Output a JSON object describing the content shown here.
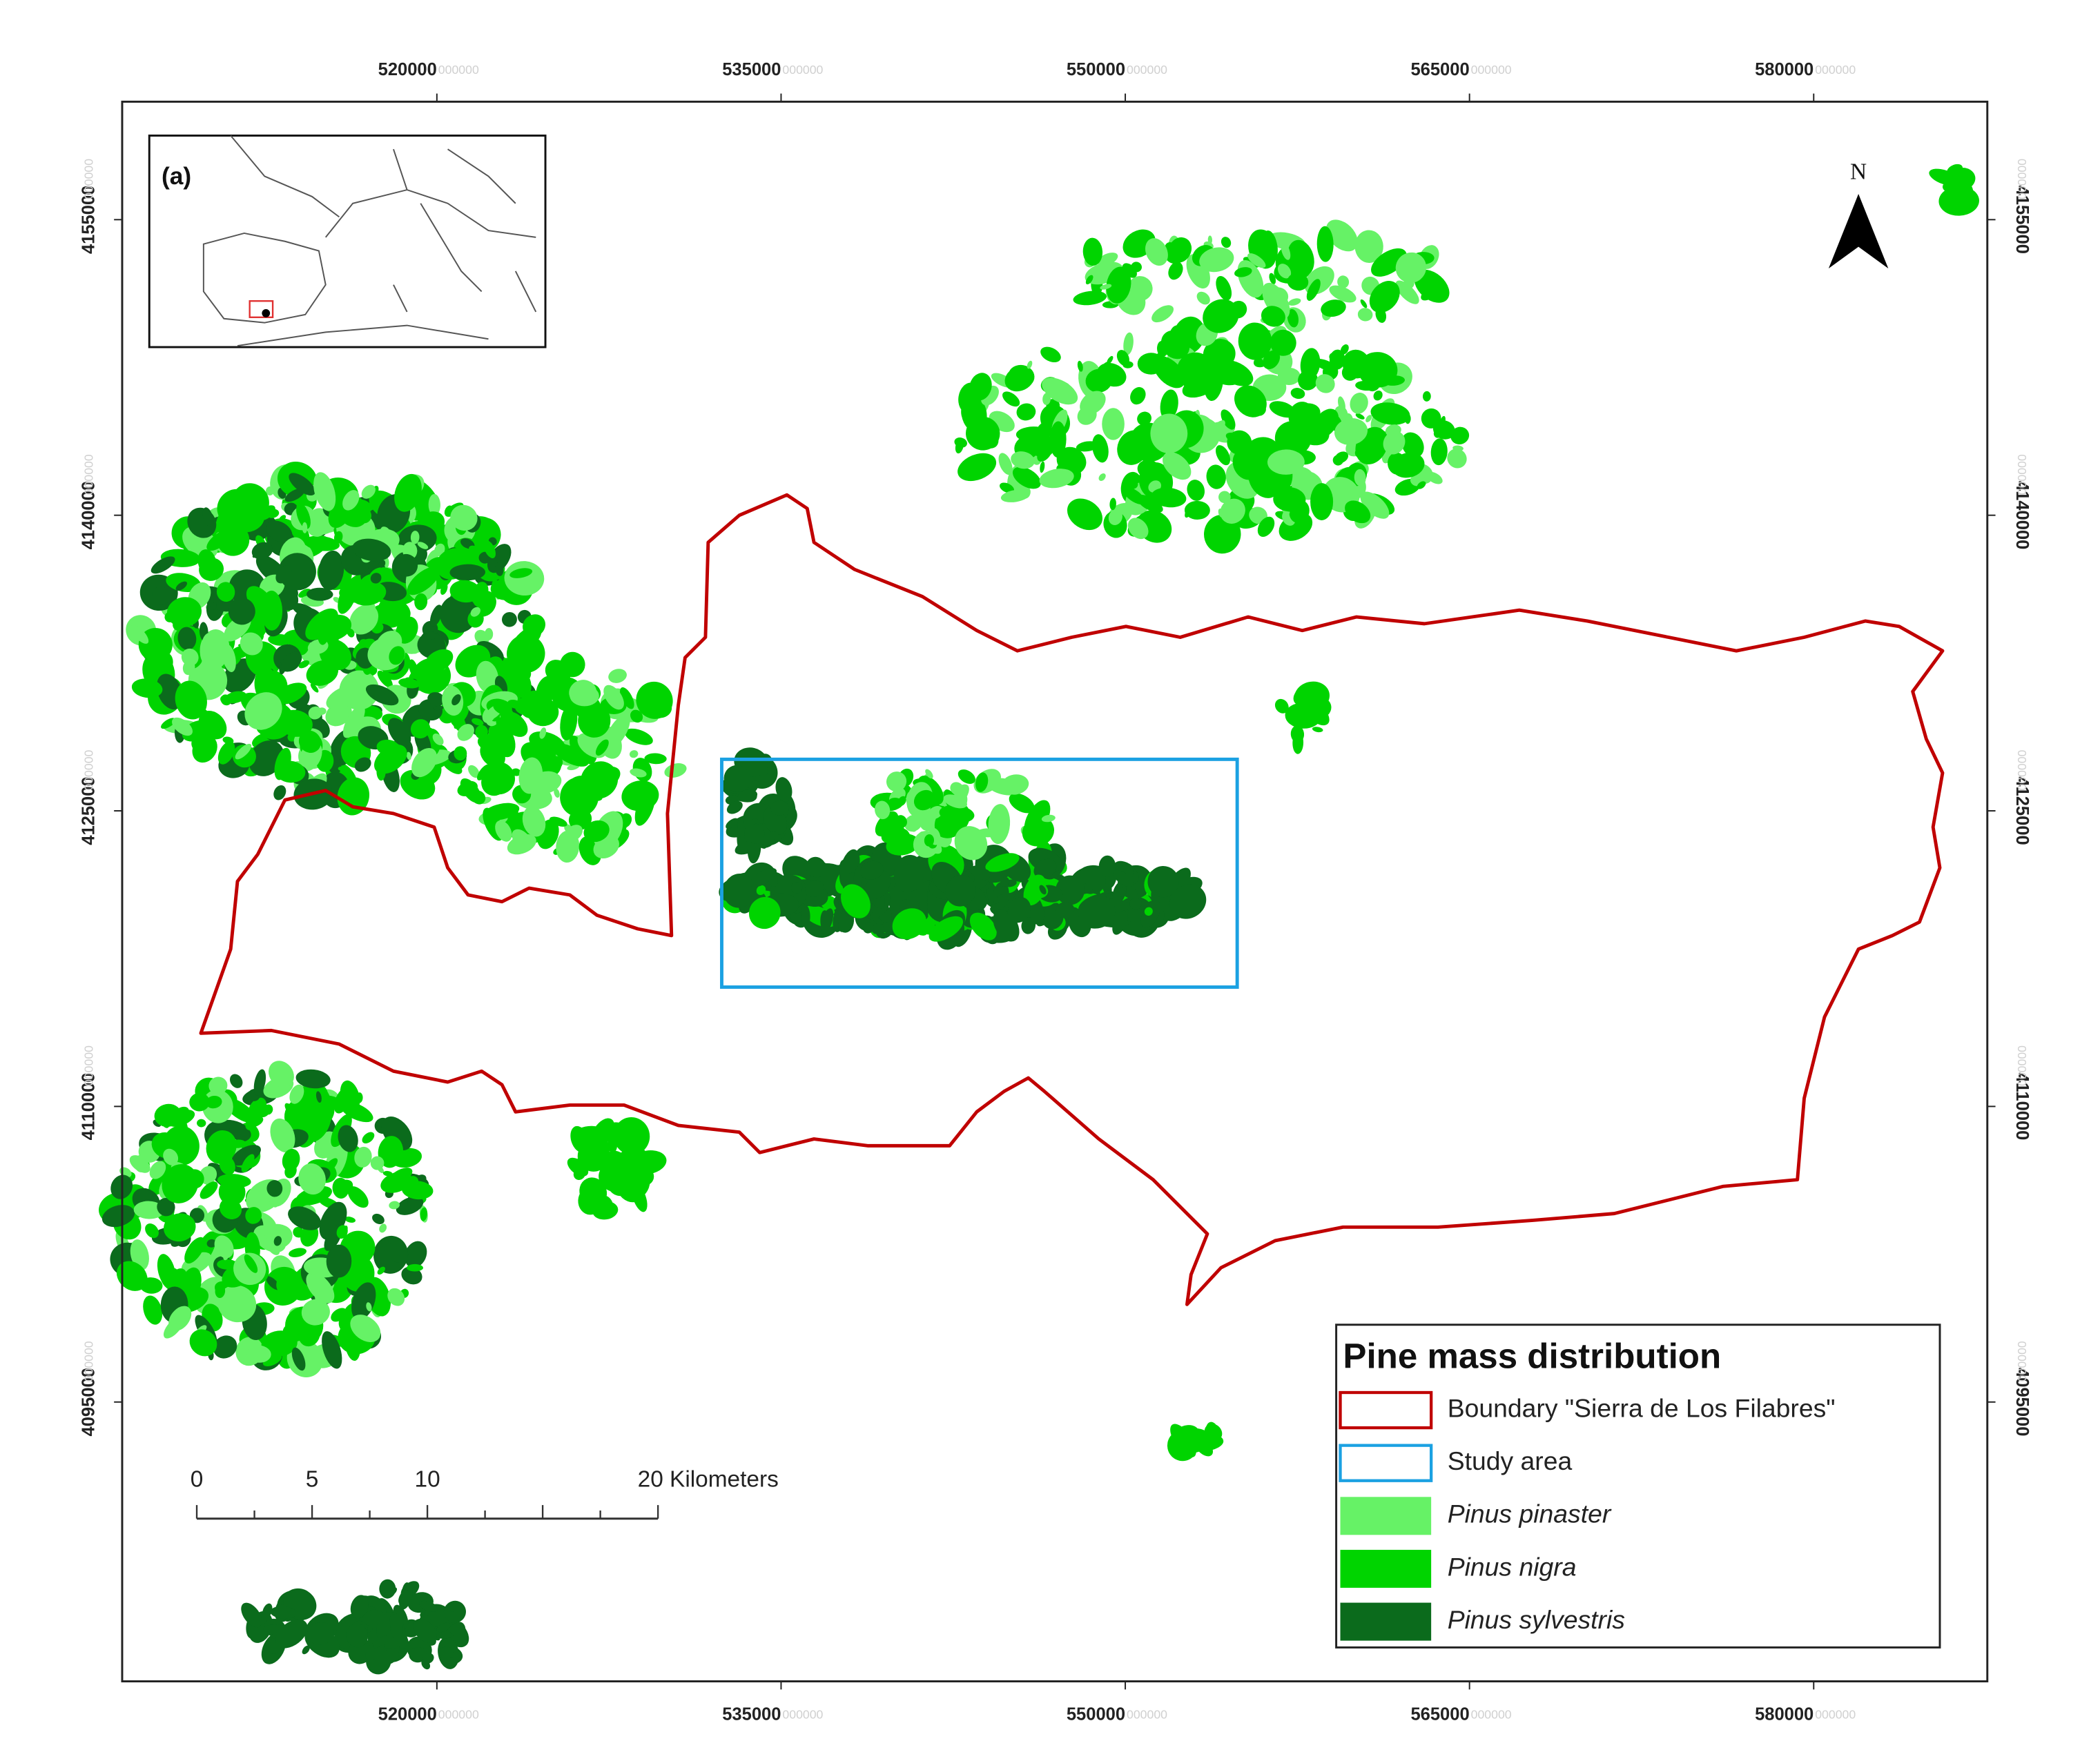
{
  "map": {
    "x_ticks": [
      "520000",
      "535000",
      "550000",
      "565000",
      "580000"
    ],
    "y_ticks": [
      "4155000",
      "4140000",
      "4125000",
      "4110000",
      "4095000"
    ],
    "ghost_digits": "000000",
    "inset_label": "(a)",
    "north_label": "N",
    "scale_bar": {
      "labels": [
        "0",
        "5",
        "10",
        "20 Kilometers"
      ]
    },
    "legend": {
      "title": "Pine mass distribution",
      "items": [
        {
          "label": "Boundary \"Sierra de Los Filabres\"",
          "color": "#c00000",
          "style": "outline"
        },
        {
          "label": "Study area",
          "color": "#1ba1e2",
          "style": "outline"
        },
        {
          "label": "Pinus pinaster",
          "color": "#66f266",
          "style": "fill"
        },
        {
          "label": "Pinus nigra",
          "color": "#00d400",
          "style": "fill"
        },
        {
          "label": "Pinus sylvestris",
          "color": "#0b6b1c",
          "style": "fill"
        }
      ]
    }
  }
}
